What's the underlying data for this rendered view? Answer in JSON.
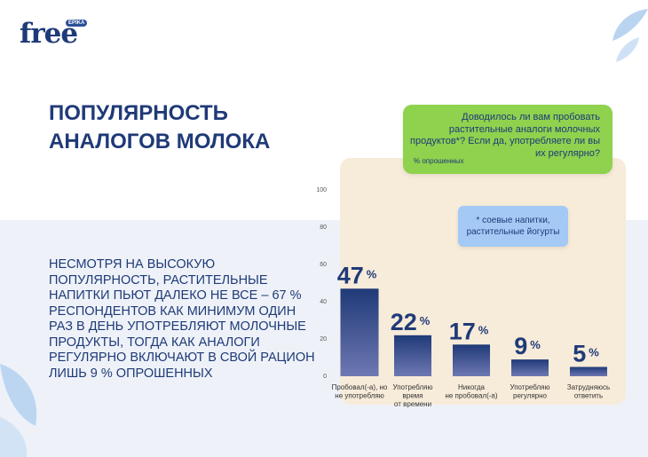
{
  "logo": {
    "word": "free",
    "tag": "EPIKA"
  },
  "title": "ПОПУЛЯРНОСТЬ АНАЛОГОВ МОЛОКА",
  "body": "НЕСМОТРЯ НА ВЫСОКУЮ ПОПУЛЯРНОСТЬ, РАСТИТЕЛЬНЫЕ НАПИТКИ ПЬЮТ ДАЛЕКО НЕ ВСЕ – 67 % РЕСПОНДЕНТОВ КАК МИНИМУМ ОДИН РАЗ В ДЕНЬ УПОТРЕБЛЯЮТ МОЛОЧНЫЕ ПРОДУКТЫ, ТОГДА КАК АНАЛОГИ РЕГУЛЯРНО ВКЛЮЧАЮТ В СВОЙ РАЦИОН ЛИШЬ 9 % ОПРОШЕННЫХ",
  "question": "Доводилось ли вам пробовать растительные аналоги молочных продуктов*? Если да, употребляете ли вы их регулярно?",
  "unit": "% опрошенных",
  "footnote": "* соевые напитки, растительные йогурты",
  "colors": {
    "title": "#1f3a78",
    "bar_top": "#1f3a78",
    "bar_bottom": "#6e78b2",
    "plot_bg": "#f7ebd9",
    "question_bg": "#8ed24e",
    "footnote_bg": "#a3c9f4"
  },
  "chart_data": {
    "type": "bar",
    "categories": [
      "Пробовал(-а), но не употребляю",
      "Употребляю время от времени",
      "Никогда не пробовал(-а)",
      "Употребляю регулярно",
      "Затрудняюсь ответить"
    ],
    "category_lines": [
      [
        "Пробовал(-а), но",
        "не употребляю"
      ],
      [
        "Употребляю",
        "время",
        "от времени"
      ],
      [
        "Никогда",
        "не пробовал(-а)"
      ],
      [
        "Употребляю",
        "регулярно"
      ],
      [
        "Затрудняюсь",
        "ответить"
      ]
    ],
    "values": [
      47,
      22,
      17,
      9,
      5
    ],
    "value_suffix": "%",
    "ylim": [
      0,
      100
    ],
    "yticks": [
      0,
      20,
      40,
      60,
      80,
      100
    ],
    "grid": false,
    "legend": "none"
  }
}
